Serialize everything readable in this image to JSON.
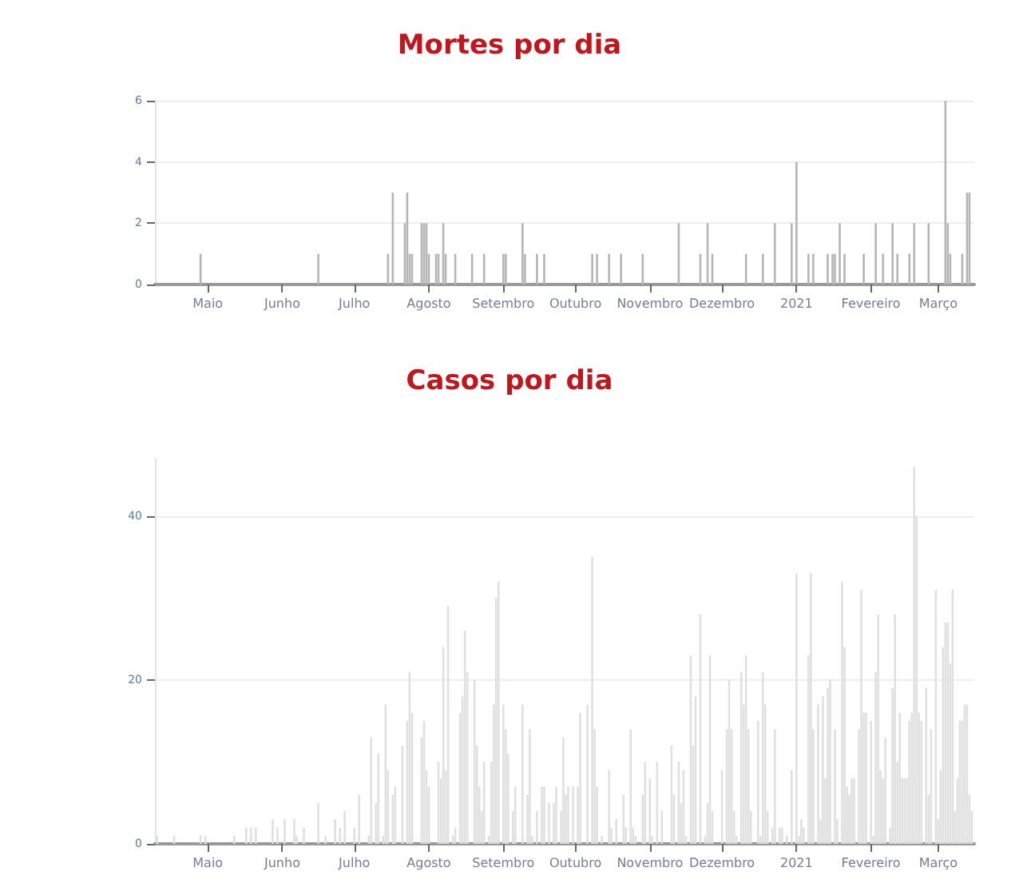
{
  "chart_data": [
    {
      "type": "bar",
      "title": "Mortes por dia",
      "color": "#b5b5b5",
      "x": [
        "2020-04-28",
        "2020-06-16",
        "2020-07-15",
        "2020-07-17",
        "2020-07-22",
        "2020-07-23",
        "2020-07-24",
        "2020-07-25",
        "2020-07-29",
        "2020-07-30",
        "2020-07-31",
        "2020-08-01",
        "2020-08-04",
        "2020-08-05",
        "2020-08-07",
        "2020-08-08",
        "2020-08-12",
        "2020-08-19",
        "2020-08-24",
        "2020-09-01",
        "2020-09-02",
        "2020-09-09",
        "2020-09-10",
        "2020-09-15",
        "2020-09-18",
        "2020-10-08",
        "2020-10-10",
        "2020-10-15",
        "2020-10-20",
        "2020-10-29",
        "2020-11-13",
        "2020-11-22",
        "2020-11-25",
        "2020-11-27",
        "2020-12-11",
        "2020-12-18",
        "2020-12-23",
        "2020-12-30",
        "2021-01-01",
        "2021-01-06",
        "2021-01-08",
        "2021-01-14",
        "2021-01-16",
        "2021-01-17",
        "2021-01-19",
        "2021-01-21",
        "2021-01-29",
        "2021-02-03",
        "2021-02-06",
        "2021-02-10",
        "2021-02-12",
        "2021-02-17",
        "2021-02-19",
        "2021-02-25",
        "2021-03-04",
        "2021-03-05",
        "2021-03-06",
        "2021-03-11",
        "2021-03-13",
        "2021-03-14"
      ],
      "values": [
        1,
        1,
        1,
        3,
        2,
        3,
        1,
        1,
        2,
        2,
        2,
        1,
        1,
        1,
        2,
        1,
        1,
        1,
        1,
        1,
        1,
        2,
        1,
        1,
        1,
        1,
        1,
        1,
        1,
        1,
        2,
        1,
        2,
        1,
        1,
        1,
        2,
        2,
        4,
        1,
        1,
        1,
        1,
        1,
        2,
        1,
        1,
        2,
        1,
        2,
        1,
        1,
        2,
        2,
        6,
        2,
        1,
        1,
        3,
        3
      ],
      "xlim": [
        "2020-04-09",
        "2021-03-16"
      ],
      "xticks": [
        {
          "value": "2020-05-01",
          "label": "Maio"
        },
        {
          "value": "2020-06-01",
          "label": "Junho"
        },
        {
          "value": "2020-07-01",
          "label": "Julho"
        },
        {
          "value": "2020-08-01",
          "label": "Agosto"
        },
        {
          "value": "2020-09-01",
          "label": "Setembro"
        },
        {
          "value": "2020-10-01",
          "label": "Outubro"
        },
        {
          "value": "2020-11-01",
          "label": "Novembro"
        },
        {
          "value": "2020-12-01",
          "label": "Dezembro"
        },
        {
          "value": "2021-01-01",
          "label": "2021"
        },
        {
          "value": "2021-02-01",
          "label": "Fevereiro"
        },
        {
          "value": "2021-03-01",
          "label": "Março"
        }
      ],
      "ylim": [
        0,
        6
      ],
      "yticks": [
        0,
        2,
        4,
        6
      ],
      "grid": "y"
    },
    {
      "type": "bar",
      "title": "Casos por dia",
      "color": "#e0e0e0",
      "x": [
        "2020-04-10",
        "2020-04-17",
        "2020-04-28",
        "2020-04-30",
        "2020-05-12",
        "2020-05-17",
        "2020-05-19",
        "2020-05-21",
        "2020-05-28",
        "2020-05-30",
        "2020-06-02",
        "2020-06-06",
        "2020-06-07",
        "2020-06-10",
        "2020-06-16",
        "2020-06-19",
        "2020-06-23",
        "2020-06-25",
        "2020-06-27",
        "2020-07-01",
        "2020-07-03",
        "2020-07-07",
        "2020-07-08",
        "2020-07-10",
        "2020-07-11",
        "2020-07-13",
        "2020-07-14",
        "2020-07-15",
        "2020-07-17",
        "2020-07-18",
        "2020-07-21",
        "2020-07-23",
        "2020-07-24",
        "2020-07-25",
        "2020-07-29",
        "2020-07-30",
        "2020-07-31",
        "2020-08-01",
        "2020-08-05",
        "2020-08-06",
        "2020-08-07",
        "2020-08-08",
        "2020-08-09",
        "2020-08-11",
        "2020-08-12",
        "2020-08-14",
        "2020-08-15",
        "2020-08-16",
        "2020-08-17",
        "2020-08-20",
        "2020-08-21",
        "2020-08-22",
        "2020-08-23",
        "2020-08-24",
        "2020-08-26",
        "2020-08-27",
        "2020-08-28",
        "2020-08-29",
        "2020-08-30",
        "2020-09-01",
        "2020-09-02",
        "2020-09-03",
        "2020-09-05",
        "2020-09-06",
        "2020-09-09",
        "2020-09-11",
        "2020-09-12",
        "2020-09-13",
        "2020-09-15",
        "2020-09-17",
        "2020-09-18",
        "2020-09-20",
        "2020-09-22",
        "2020-09-23",
        "2020-09-25",
        "2020-09-26",
        "2020-09-27",
        "2020-09-28",
        "2020-09-30",
        "2020-10-02",
        "2020-10-03",
        "2020-10-06",
        "2020-10-08",
        "2020-10-09",
        "2020-10-10",
        "2020-10-12",
        "2020-10-15",
        "2020-10-16",
        "2020-10-18",
        "2020-10-21",
        "2020-10-22",
        "2020-10-24",
        "2020-10-25",
        "2020-10-26",
        "2020-10-29",
        "2020-10-30",
        "2020-11-01",
        "2020-11-02",
        "2020-11-04",
        "2020-11-06",
        "2020-11-10",
        "2020-11-11",
        "2020-11-13",
        "2020-11-14",
        "2020-11-15",
        "2020-11-16",
        "2020-11-18",
        "2020-11-19",
        "2020-11-20",
        "2020-11-22",
        "2020-11-24",
        "2020-11-25",
        "2020-11-26",
        "2020-11-27",
        "2020-12-01",
        "2020-12-03",
        "2020-12-04",
        "2020-12-05",
        "2020-12-06",
        "2020-12-07",
        "2020-12-09",
        "2020-12-10",
        "2020-12-11",
        "2020-12-12",
        "2020-12-13",
        "2020-12-16",
        "2020-12-17",
        "2020-12-18",
        "2020-12-19",
        "2020-12-20",
        "2020-12-22",
        "2020-12-23",
        "2020-12-25",
        "2020-12-26",
        "2020-12-28",
        "2020-12-30",
        "2021-01-01",
        "2021-01-02",
        "2021-01-03",
        "2021-01-04",
        "2021-01-06",
        "2021-01-07",
        "2021-01-08",
        "2021-01-10",
        "2021-01-11",
        "2021-01-12",
        "2021-01-13",
        "2021-01-14",
        "2021-01-15",
        "2021-01-17",
        "2021-01-18",
        "2021-01-20",
        "2021-01-21",
        "2021-01-22",
        "2021-01-23",
        "2021-01-24",
        "2021-01-25",
        "2021-01-27",
        "2021-01-28",
        "2021-01-29",
        "2021-01-30",
        "2021-02-01",
        "2021-02-02",
        "2021-02-03",
        "2021-02-04",
        "2021-02-05",
        "2021-02-06",
        "2021-02-07",
        "2021-02-09",
        "2021-02-10",
        "2021-02-11",
        "2021-02-12",
        "2021-02-13",
        "2021-02-14",
        "2021-02-15",
        "2021-02-16",
        "2021-02-17",
        "2021-02-18",
        "2021-02-19",
        "2021-02-20",
        "2021-02-21",
        "2021-02-22",
        "2021-02-24",
        "2021-02-25",
        "2021-02-26",
        "2021-02-28",
        "2021-03-01",
        "2021-03-02",
        "2021-03-03",
        "2021-03-04",
        "2021-03-05",
        "2021-03-06",
        "2021-03-07",
        "2021-03-08",
        "2021-03-09",
        "2021-03-10",
        "2021-03-11",
        "2021-03-12",
        "2021-03-13",
        "2021-03-14",
        "2021-03-15"
      ],
      "values": [
        1,
        1,
        1,
        1,
        1,
        2,
        2,
        2,
        3,
        2,
        3,
        3,
        1,
        2,
        5,
        1,
        3,
        2,
        4,
        2,
        6,
        1,
        13,
        5,
        11,
        1,
        17,
        9,
        6,
        7,
        12,
        15,
        21,
        16,
        13,
        15,
        9,
        7,
        10,
        8,
        24,
        9,
        29,
        1,
        2,
        16,
        18,
        26,
        21,
        20,
        12,
        7,
        4,
        10,
        1,
        10,
        17,
        30,
        32,
        17,
        14,
        11,
        4,
        7,
        17,
        6,
        14,
        1,
        4,
        7,
        7,
        5,
        5,
        7,
        4,
        13,
        6,
        7,
        7,
        7,
        16,
        17,
        35,
        14,
        7,
        1,
        9,
        2,
        3,
        6,
        2,
        14,
        2,
        1,
        6,
        10,
        8,
        1,
        10,
        4,
        12,
        6,
        10,
        5,
        9,
        1,
        23,
        12,
        18,
        28,
        1,
        5,
        23,
        4,
        9,
        14,
        20,
        14,
        4,
        1,
        21,
        17,
        23,
        14,
        4,
        15,
        1,
        21,
        17,
        4,
        2,
        14,
        2,
        2,
        1,
        9,
        33,
        1,
        3,
        2,
        23,
        33,
        14,
        17,
        3,
        18,
        8,
        19,
        20,
        14,
        3,
        32,
        24,
        7,
        6,
        8,
        8,
        14,
        31,
        16,
        16,
        15,
        1,
        21,
        28,
        9,
        8,
        13,
        2,
        19,
        28,
        10,
        16,
        8,
        8,
        8,
        15,
        16,
        46,
        40,
        16,
        15,
        19,
        6,
        14,
        31,
        3,
        9,
        24,
        27,
        27,
        22,
        31,
        4,
        8,
        15,
        15,
        17,
        17,
        6,
        4
      ],
      "xlim": [
        "2020-04-09",
        "2021-03-16"
      ],
      "xticks": [
        {
          "value": "2020-05-01",
          "label": "Maio"
        },
        {
          "value": "2020-06-01",
          "label": "Junho"
        },
        {
          "value": "2020-07-01",
          "label": "Julho"
        },
        {
          "value": "2020-08-01",
          "label": "Agosto"
        },
        {
          "value": "2020-09-01",
          "label": "Setembro"
        },
        {
          "value": "2020-10-01",
          "label": "Outubro"
        },
        {
          "value": "2020-11-01",
          "label": "Novembro"
        },
        {
          "value": "2020-12-01",
          "label": "Dezembro"
        },
        {
          "value": "2021-01-01",
          "label": "2021"
        },
        {
          "value": "2021-02-01",
          "label": "Fevereiro"
        },
        {
          "value": "2021-03-01",
          "label": "Março"
        }
      ],
      "ylim": [
        0,
        47
      ],
      "yticks": [
        0,
        20,
        40
      ],
      "grid": "y"
    }
  ]
}
